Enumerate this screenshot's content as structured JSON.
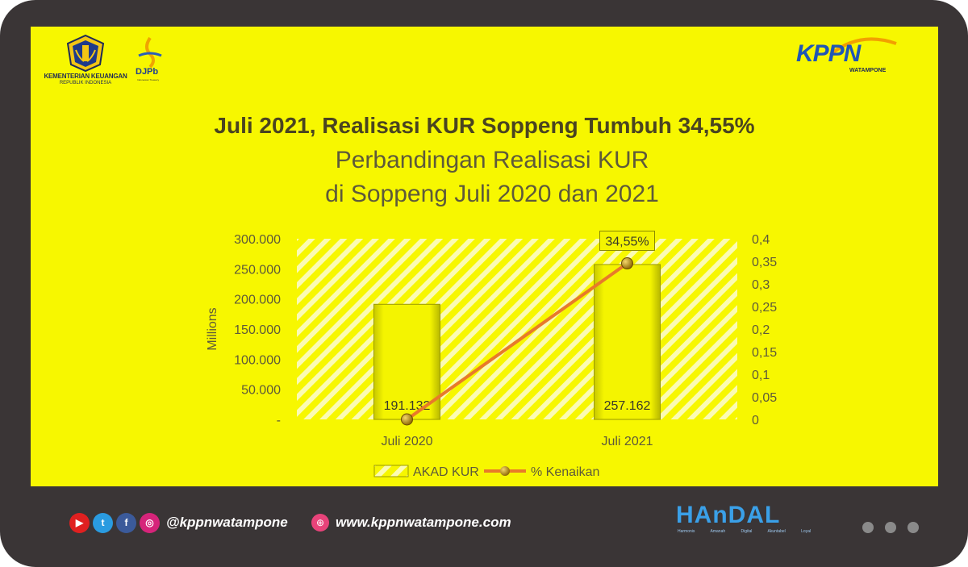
{
  "logos": {
    "kemenkeu_line1": "KEMENTERIAN KEUANGAN",
    "kemenkeu_line2": "REPUBLIK INDONESIA",
    "djpb": "DJPb",
    "djpb_sub": "Indonesian Treasury",
    "kppn": "KPPN",
    "kppn_sub": "WATAMPONE"
  },
  "headline": "Juli 2021, Realisasi KUR Soppeng Tumbuh 34,55%",
  "colors": {
    "panel": "#f7f700",
    "frame": "#3a3536",
    "line": "#e87a2a",
    "marker": "#b88a10",
    "bar": "#f2f200"
  },
  "chart_data": {
    "type": "bar",
    "title_line1": "Perbandingan Realisasi KUR",
    "title_line2": "di Soppeng Juli 2020 dan 2021",
    "categories": [
      "Juli 2020",
      "Juli 2021"
    ],
    "ylabel": "Millions",
    "ylim": [
      0,
      300000
    ],
    "y2lim": [
      0,
      0.4
    ],
    "y_ticks": [
      "300.000",
      "250.000",
      "200.000",
      "150.000",
      "100.000",
      "50.000",
      "-"
    ],
    "y2_ticks": [
      "0,4",
      "0,35",
      "0,3",
      "0,25",
      "0,2",
      "0,15",
      "0,1",
      "0,05",
      "0"
    ],
    "grid": false,
    "legend_position": "bottom",
    "series": [
      {
        "name": "AKAD KUR",
        "type": "bar",
        "axis": "left",
        "values": [
          191132,
          257162
        ],
        "labels": [
          "191.132",
          "257.162"
        ]
      },
      {
        "name": "% Kenaikan",
        "type": "line",
        "axis": "right",
        "values": [
          0,
          0.3455
        ],
        "labels": [
          "",
          "34,55%"
        ]
      }
    ]
  },
  "footer": {
    "social_icons": [
      "youtube-icon",
      "twitter-icon",
      "facebook-icon",
      "instagram-icon"
    ],
    "handle": "@kppnwatampone",
    "website": "www.kppnwatampone.com",
    "handal": "HAnDAL",
    "handal_sub": "Harmonis Amanah Digital Akuntabel Loyal"
  }
}
